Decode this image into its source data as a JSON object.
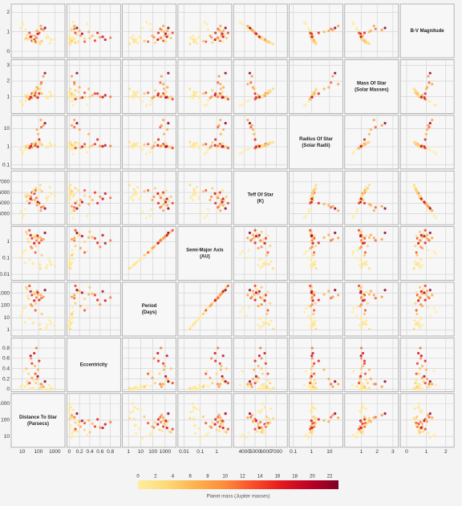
{
  "chart_data": {
    "type": "scatter_matrix",
    "dimensions": [
      {
        "name": "Distance To Star",
        "unit": "(Parsecs)",
        "scale": "log",
        "lim": [
          3,
          3000
        ],
        "ticks": [
          10,
          100,
          1000
        ],
        "values": [
          15,
          45,
          120,
          300,
          600,
          25,
          60,
          35,
          80,
          150,
          20,
          10,
          12,
          40,
          55,
          90,
          200,
          70,
          30,
          500,
          1000,
          18,
          65,
          110,
          8,
          22,
          48,
          250,
          130,
          40,
          75,
          160,
          28,
          350,
          50,
          16,
          95,
          420,
          33,
          140
        ]
      },
      {
        "name": "Eccentricity",
        "scale": "linear",
        "lim": [
          0,
          0.95
        ],
        "ticks": [
          0,
          0.2,
          0.4,
          0.6,
          0.8
        ],
        "values": [
          0.05,
          0.02,
          0.01,
          0,
          0.03,
          0.3,
          0.45,
          0.6,
          0.2,
          0.1,
          0.15,
          0.08,
          0.35,
          0.5,
          0.7,
          0.25,
          0.05,
          0.12,
          0.02,
          0,
          0.01,
          0.4,
          0.3,
          0.55,
          0.05,
          0.1,
          0.02,
          0.15,
          0.02,
          0.22,
          0.8,
          0.05,
          0.12,
          0,
          0.18,
          0.06,
          0.38,
          0.08,
          0.65,
          0.1
        ]
      },
      {
        "name": "Period",
        "unit": "(Days)",
        "scale": "log",
        "lim": [
          0.5,
          5000
        ],
        "ticks": [
          1,
          10,
          100,
          1000
        ],
        "values": [
          4.2,
          3.5,
          2.8,
          1.5,
          3.1,
          350,
          900,
          120,
          1500,
          400,
          2000,
          30,
          60,
          700,
          250,
          1100,
          500,
          150,
          8,
          5.5,
          2.2,
          3000,
          40,
          280,
          14,
          600,
          3.9,
          1800,
          1.2,
          90,
          450,
          20,
          4000,
          2.5,
          1200,
          70,
          800,
          10,
          1400,
          700
        ]
      },
      {
        "name": "Semi-Major Axis",
        "unit": "(AU)",
        "scale": "log",
        "lim": [
          0.006,
          6
        ],
        "ticks": [
          0.01,
          0.1,
          1
        ],
        "values": [
          0.05,
          0.045,
          0.04,
          0.025,
          0.04,
          1.0,
          1.9,
          0.48,
          2.6,
          1.2,
          3.0,
          0.18,
          0.25,
          1.6,
          0.8,
          2.2,
          1.4,
          0.55,
          0.08,
          0.06,
          0.033,
          4.0,
          0.22,
          0.85,
          0.1,
          1.5,
          0.048,
          3.5,
          0.023,
          0.4,
          1.2,
          0.15,
          5.0,
          0.036,
          2.3,
          0.3,
          1.8,
          0.09,
          2.5,
          1.7
        ]
      },
      {
        "name": "Teff Of Star",
        "unit": "(K)",
        "scale": "linear",
        "lim": [
          3200,
          7800
        ],
        "ticks": [
          4000,
          5000,
          6000,
          7000
        ],
        "values": [
          5800,
          6100,
          6300,
          5500,
          5900,
          5700,
          5300,
          5600,
          4800,
          4600,
          5200,
          3600,
          3800,
          6000,
          5900,
          5100,
          4700,
          6400,
          5400,
          6500,
          5700,
          5600,
          6200,
          5000,
          4200,
          5800,
          6000,
          4500,
          6700,
          5300,
          5500,
          6100,
          5000,
          5300,
          6200,
          4400,
          4900,
          5600,
          5400,
          4300
        ]
      },
      {
        "name": "Radius Of Star",
        "unit": "(Solar Radii)",
        "scale": "log",
        "lim": [
          0.08,
          40
        ],
        "ticks": [
          0.1,
          1,
          10
        ],
        "values": [
          1.1,
          1.3,
          1.5,
          1.0,
          1.2,
          1.0,
          1.2,
          1.1,
          9.0,
          12,
          0.9,
          0.4,
          0.5,
          1.4,
          1.2,
          1.0,
          15,
          1.7,
          0.95,
          1.6,
          1.2,
          1.0,
          1.4,
          2.5,
          0.7,
          1.15,
          1.25,
          20,
          1.8,
          0.9,
          1.1,
          1.3,
          0.85,
          0.9,
          1.5,
          0.75,
          5.0,
          1.0,
          1.05,
          30
        ]
      },
      {
        "name": "Mass Of Star",
        "unit": "(Solar Masses)",
        "scale": "linear",
        "lim": [
          0.1,
          3.2
        ],
        "ticks": [
          1,
          2,
          3
        ],
        "values": [
          1.1,
          1.2,
          1.3,
          1.0,
          1.1,
          1.0,
          1.1,
          1.0,
          1.6,
          1.9,
          0.9,
          0.45,
          0.5,
          1.2,
          1.1,
          0.95,
          2.3,
          1.4,
          0.95,
          1.3,
          1.05,
          1.0,
          1.25,
          1.2,
          0.7,
          1.1,
          1.15,
          2.5,
          1.5,
          0.92,
          1.0,
          1.2,
          0.85,
          0.9,
          1.3,
          0.75,
          1.5,
          1.0,
          0.98,
          1.8
        ]
      },
      {
        "name": "B-V Magnitude",
        "scale": "linear",
        "lim": [
          -0.2,
          2.3
        ],
        "ticks": [
          0,
          1,
          2
        ],
        "values": [
          0.62,
          0.52,
          0.48,
          0.7,
          0.6,
          0.65,
          0.8,
          0.72,
          1.05,
          1.15,
          0.85,
          1.5,
          1.4,
          0.55,
          0.6,
          0.9,
          1.1,
          0.45,
          0.75,
          0.42,
          0.63,
          0.68,
          0.5,
          0.95,
          1.2,
          0.62,
          0.55,
          1.2,
          0.38,
          0.8,
          0.7,
          0.53,
          0.95,
          0.8,
          0.5,
          1.1,
          1.0,
          0.7,
          0.75,
          1.3
        ]
      }
    ],
    "color_label": "Planet mass (Jupiter masses)",
    "color_lim": [
      0,
      23
    ],
    "color_ticks": [
      0,
      2,
      4,
      6,
      8,
      10,
      12,
      14,
      16,
      18,
      20,
      22
    ],
    "colors": [
      "#ffeda0",
      "#fed976",
      "#feb24c",
      "#fd8d3c",
      "#fc4e2a",
      "#e31a1c",
      "#bd0026",
      "#800026"
    ],
    "color_values": [
      0.5,
      1.2,
      2.0,
      0.8,
      1.5,
      3.5,
      6.0,
      10,
      7.5,
      12,
      2.5,
      0.1,
      0.3,
      15,
      18,
      20,
      9,
      4,
      0.3,
      0.9,
      1.1,
      5,
      13,
      16,
      0.05,
      1.8,
      0.6,
      22,
      3,
      8,
      11,
      5,
      14,
      0.4,
      2.2,
      0.2,
      6.5,
      0.7,
      19,
      8
    ],
    "grid": true
  }
}
